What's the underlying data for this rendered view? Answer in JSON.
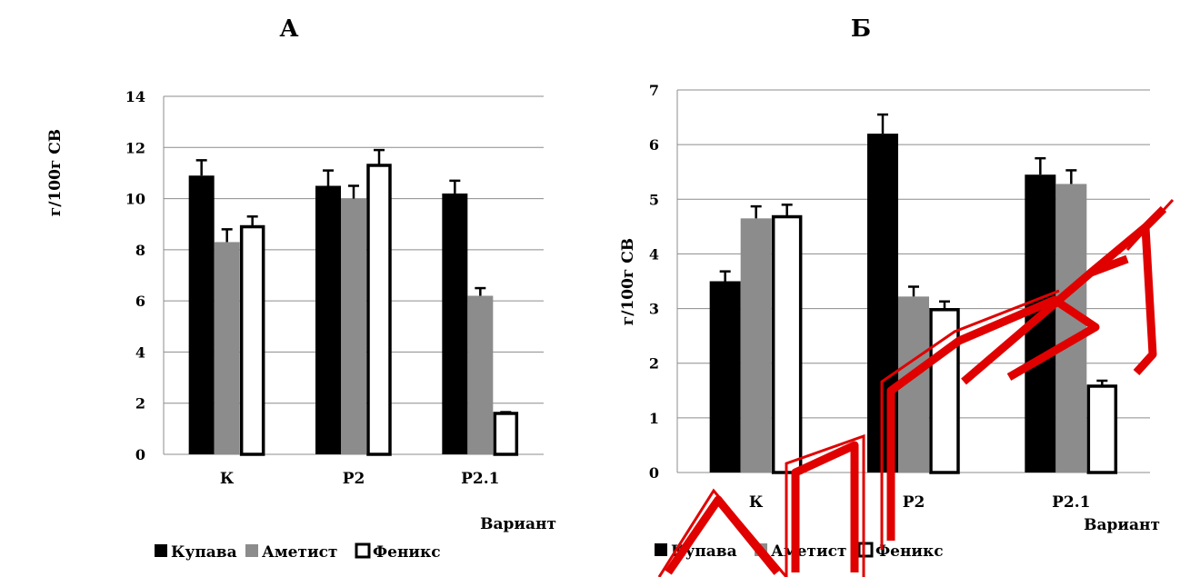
{
  "chart_data": [
    {
      "type": "bar",
      "title": "А",
      "ylabel": "г/100г СВ",
      "xlabel": "Вариант",
      "categories": [
        "К",
        "Р2",
        "Р2.1"
      ],
      "ylim": [
        0,
        14
      ],
      "yticks": [
        0,
        2,
        4,
        6,
        8,
        10,
        12,
        14
      ],
      "grid": true,
      "legend_position": "bottom",
      "series": [
        {
          "name": "Купава",
          "color": "#000000",
          "values": [
            10.9,
            10.5,
            10.2
          ],
          "errors": [
            0.6,
            0.6,
            0.5
          ]
        },
        {
          "name": "Аметист",
          "color": "#8c8c8c",
          "values": [
            8.3,
            10.0,
            6.2
          ],
          "errors": [
            0.5,
            0.5,
            0.3
          ]
        },
        {
          "name": "Феникс",
          "color": "#ffffff",
          "values": [
            8.9,
            11.3,
            1.6
          ],
          "errors": [
            0.4,
            0.6,
            0.05
          ]
        }
      ]
    },
    {
      "type": "bar",
      "title": "Б",
      "ylabel": "г/100г СВ",
      "xlabel": "Вариант",
      "categories": [
        "К",
        "Р2",
        "Р2.1"
      ],
      "ylim": [
        0,
        7
      ],
      "yticks": [
        0,
        1,
        2,
        3,
        4,
        5,
        6,
        7
      ],
      "grid": true,
      "legend_position": "bottom",
      "series": [
        {
          "name": "Купава",
          "color": "#000000",
          "values": [
            3.5,
            6.2,
            5.45
          ],
          "errors": [
            0.18,
            0.35,
            0.3
          ]
        },
        {
          "name": "Аметист",
          "color": "#8c8c8c",
          "values": [
            4.65,
            3.22,
            5.28
          ],
          "errors": [
            0.22,
            0.18,
            0.25
          ]
        },
        {
          "name": "Феникс",
          "color": "#ffffff",
          "values": [
            4.68,
            2.98,
            1.58
          ],
          "errors": [
            0.22,
            0.15,
            0.1
          ]
        }
      ]
    }
  ]
}
